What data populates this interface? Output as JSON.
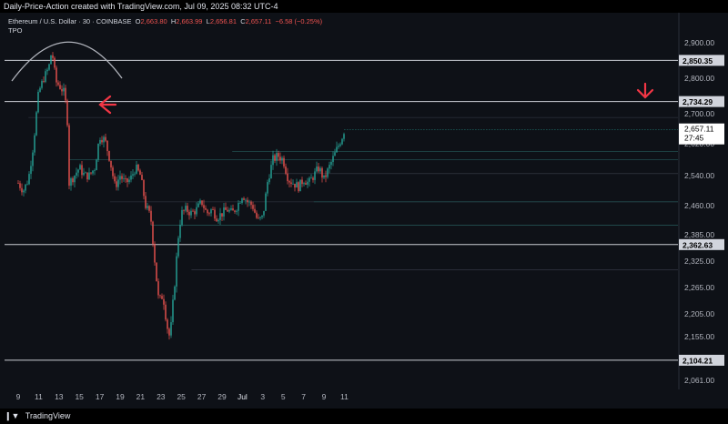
{
  "header": {
    "attribution": "Daily-Price-Action created with TradingView.com, Jul 09, 2025 08:32 UTC-4"
  },
  "legend": {
    "symbol": "Ethereum / U.S. Dollar · 30 · COINBASE",
    "o_label": "O",
    "o": "2,663.80",
    "h_label": "H",
    "h": "2,663.99",
    "l_label": "L",
    "l": "2,656.81",
    "c_label": "C",
    "c": "2,657.11",
    "chg": "−6.58 (−0.25%)",
    "indicator": "TPO"
  },
  "footer": {
    "brand": "TradingView"
  },
  "colors": {
    "up": "#26a69a",
    "down": "#ef5350",
    "arrow": "#f23645",
    "level": "#c9ccd3",
    "bg": "#0e1117"
  },
  "chart_data": {
    "type": "candlestick",
    "x_ticks": [
      "9",
      "11",
      "13",
      "15",
      "17",
      "19",
      "21",
      "23",
      "25",
      "27",
      "29",
      "Jul",
      "3",
      "5",
      "7",
      "9",
      "11"
    ],
    "y_ticks": [
      "2,900.00",
      "2,800.00",
      "2,700.00",
      "2,620.00",
      "2,540.00",
      "2,460.00",
      "2,385.00",
      "2,325.00",
      "2,265.00",
      "2,205.00",
      "2,155.00",
      "2,061.00"
    ],
    "horizontal_levels": [
      {
        "value": 2850.35,
        "label": "2,850.35"
      },
      {
        "value": 2734.29,
        "label": "2,734.29"
      },
      {
        "value": 2362.63,
        "label": "2,362.63"
      },
      {
        "value": 2104.21,
        "label": "2,104.21"
      }
    ],
    "last_price": {
      "value": 2657.11,
      "label": "2,657.11",
      "countdown": "27:45"
    },
    "path": [
      {
        "x": 0,
        "y": 2520
      },
      {
        "x": 0.5,
        "y": 2500
      },
      {
        "x": 1,
        "y": 2530
      },
      {
        "x": 1.5,
        "y": 2620
      },
      {
        "x": 2,
        "y": 2760
      },
      {
        "x": 2.5,
        "y": 2800
      },
      {
        "x": 3,
        "y": 2830
      },
      {
        "x": 3.3,
        "y": 2880
      },
      {
        "x": 3.7,
        "y": 2790
      },
      {
        "x": 4,
        "y": 2780
      },
      {
        "x": 4.5,
        "y": 2760
      },
      {
        "x": 4.8,
        "y": 2700
      },
      {
        "x": 5,
        "y": 2520
      },
      {
        "x": 5.5,
        "y": 2540
      },
      {
        "x": 6,
        "y": 2560
      },
      {
        "x": 6.5,
        "y": 2540
      },
      {
        "x": 7,
        "y": 2540
      },
      {
        "x": 7.5,
        "y": 2560
      },
      {
        "x": 8,
        "y": 2640
      },
      {
        "x": 8.5,
        "y": 2630
      },
      {
        "x": 9,
        "y": 2580
      },
      {
        "x": 9.5,
        "y": 2510
      },
      {
        "x": 10,
        "y": 2540
      },
      {
        "x": 10.5,
        "y": 2520
      },
      {
        "x": 11,
        "y": 2530
      },
      {
        "x": 11.5,
        "y": 2560
      },
      {
        "x": 12,
        "y": 2540
      },
      {
        "x": 12.5,
        "y": 2460
      },
      {
        "x": 13,
        "y": 2430
      },
      {
        "x": 13.5,
        "y": 2300
      },
      {
        "x": 13.8,
        "y": 2230
      },
      {
        "x": 14.2,
        "y": 2250
      },
      {
        "x": 14.6,
        "y": 2180
      },
      {
        "x": 14.9,
        "y": 2150
      },
      {
        "x": 15.3,
        "y": 2260
      },
      {
        "x": 15.7,
        "y": 2380
      },
      {
        "x": 16,
        "y": 2440
      },
      {
        "x": 16.5,
        "y": 2450
      },
      {
        "x": 17,
        "y": 2440
      },
      {
        "x": 17.5,
        "y": 2450
      },
      {
        "x": 18,
        "y": 2470
      },
      {
        "x": 18.5,
        "y": 2440
      },
      {
        "x": 19,
        "y": 2450
      },
      {
        "x": 19.5,
        "y": 2430
      },
      {
        "x": 20,
        "y": 2440
      },
      {
        "x": 20.5,
        "y": 2450
      },
      {
        "x": 21,
        "y": 2440
      },
      {
        "x": 21.5,
        "y": 2460
      },
      {
        "x": 22,
        "y": 2490
      },
      {
        "x": 22.5,
        "y": 2470
      },
      {
        "x": 23,
        "y": 2460
      },
      {
        "x": 23.5,
        "y": 2420
      },
      {
        "x": 24,
        "y": 2430
      },
      {
        "x": 24.5,
        "y": 2530
      },
      {
        "x": 25,
        "y": 2580
      },
      {
        "x": 25.5,
        "y": 2590
      },
      {
        "x": 26,
        "y": 2580
      },
      {
        "x": 26.5,
        "y": 2530
      },
      {
        "x": 27,
        "y": 2520
      },
      {
        "x": 27.5,
        "y": 2510
      },
      {
        "x": 28,
        "y": 2530
      },
      {
        "x": 28.5,
        "y": 2520
      },
      {
        "x": 29,
        "y": 2540
      },
      {
        "x": 29.5,
        "y": 2560
      },
      {
        "x": 30,
        "y": 2530
      },
      {
        "x": 30.5,
        "y": 2560
      },
      {
        "x": 31,
        "y": 2590
      },
      {
        "x": 31.5,
        "y": 2620
      },
      {
        "x": 31.8,
        "y": 2640
      },
      {
        "x": 32.0,
        "y": 2657
      }
    ]
  }
}
